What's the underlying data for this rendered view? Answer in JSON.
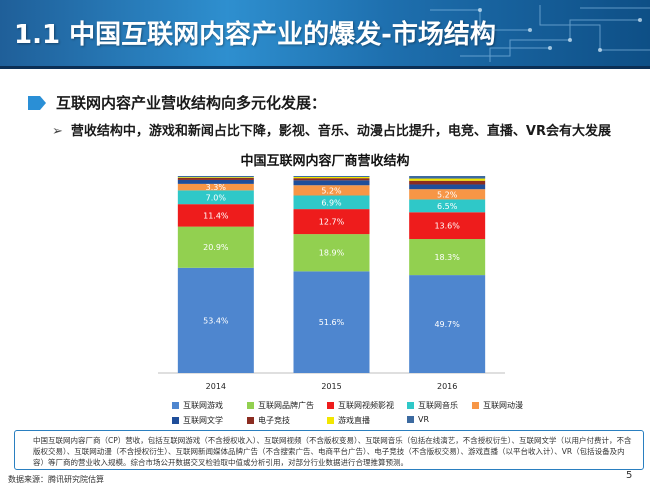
{
  "slide": {
    "title": "1.1 中国互联网内容产业的爆发-市场结构",
    "heading": "互联网内容产业营收结构向多元化发展：",
    "bullet_mark": "➢",
    "bullet": "营收结构中，游戏和新闻占比下降，影视、音乐、动漫占比提升，电竞、直播、VR会有大发展",
    "note": "中国互联网内容厂商（CP）营收，包括互联网游戏（不含授权收入）、互联网视频（不含版权变易）、互联网音乐（包括在线演艺，不含授权衍生）、互联网文学（以用户付费计，不含版权交易）、互联网动漫（不含授权衍生）、互联网新闻媒体品牌广告（不含搜索广告、电商平台广告）、电子竞技（不含版权交易）、游戏直播（以平台收入计）、VR（包括设备及内容）等厂商的营业收入规模。综合市场公开数据交叉检验取中值或分析引用，对部分行业数据进行合理推算预测。",
    "source": "数据来源：腾讯研究院估算",
    "page_number": "5"
  },
  "colors": {
    "banner": "#2e8fcf",
    "accent": "#2a7fc0"
  },
  "chart_data": {
    "type": "bar",
    "stacked": true,
    "title": "中国互联网内容厂商营收结构",
    "categories": [
      "2014",
      "2015",
      "2016"
    ],
    "ylim": [
      0,
      100
    ],
    "series": [
      {
        "name": "互联网游戏",
        "color": "#4e86cf",
        "values": [
          53.4,
          51.6,
          49.7
        ],
        "labels": [
          "53.4%",
          "51.6%",
          "49.7%"
        ]
      },
      {
        "name": "互联网品牌广告",
        "color": "#92d050",
        "values": [
          20.9,
          18.9,
          18.3
        ],
        "labels": [
          "20.9%",
          "18.9%",
          "18.3%"
        ]
      },
      {
        "name": "互联网视频影视",
        "color": "#ee1c1c",
        "values": [
          11.4,
          12.7,
          13.6
        ],
        "labels": [
          "11.4%",
          "12.7%",
          "13.6%"
        ]
      },
      {
        "name": "互联网音乐",
        "color": "#2fc8c8",
        "values": [
          7.0,
          6.9,
          6.5
        ],
        "labels": [
          "7.0%",
          "6.9%",
          "6.5%"
        ]
      },
      {
        "name": "互联网动漫",
        "color": "#f79646",
        "values": [
          3.3,
          5.2,
          5.2
        ],
        "labels": [
          "3.3%",
          "5.2%",
          "5.2%"
        ]
      },
      {
        "name": "互联网文学",
        "color": "#1f4e9a",
        "values": [
          2.0,
          2.5,
          2.4
        ],
        "labels": [
          "",
          "",
          ""
        ]
      },
      {
        "name": "电子竞技",
        "color": "#8b2c20",
        "values": [
          1.0,
          1.1,
          1.9
        ],
        "labels": [
          "",
          "",
          ""
        ]
      },
      {
        "name": "游戏直播",
        "color": "#f2e600",
        "values": [
          0.4,
          0.6,
          1.1
        ],
        "labels": [
          "",
          "",
          ""
        ]
      },
      {
        "name": "VR",
        "color": "#3c6aa0",
        "values": [
          0.6,
          0.5,
          1.3
        ],
        "labels": [
          "",
          "",
          ""
        ]
      }
    ]
  }
}
